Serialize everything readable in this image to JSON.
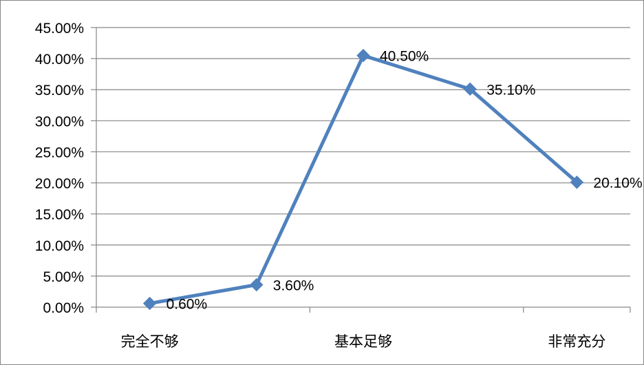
{
  "chart_data": {
    "type": "line",
    "title": "",
    "xlabel": "",
    "ylabel": "",
    "x": [
      "完全不够",
      "",
      "基本足够",
      "",
      "非常充分"
    ],
    "x_tick_labels": [
      "完全不够",
      "基本足够",
      "非常充分"
    ],
    "series": [
      {
        "values": [
          0.006,
          0.036,
          0.405,
          0.351,
          0.201
        ],
        "data_labels": [
          "0.60%",
          "3.60%",
          "40.50%",
          "35.10%",
          "20.10%"
        ],
        "color": "#4F81BD",
        "marker": "diamond"
      }
    ],
    "ylim": [
      0,
      0.45
    ],
    "y_ticks": [
      0,
      0.05,
      0.1,
      0.15,
      0.2,
      0.25,
      0.3,
      0.35,
      0.4,
      0.45
    ],
    "y_tick_labels": [
      "0.00%",
      "5.00%",
      "10.00%",
      "15.00%",
      "20.00%",
      "25.00%",
      "30.00%",
      "35.00%",
      "40.00%",
      "45.00%"
    ],
    "grid": true,
    "legend": "none"
  }
}
